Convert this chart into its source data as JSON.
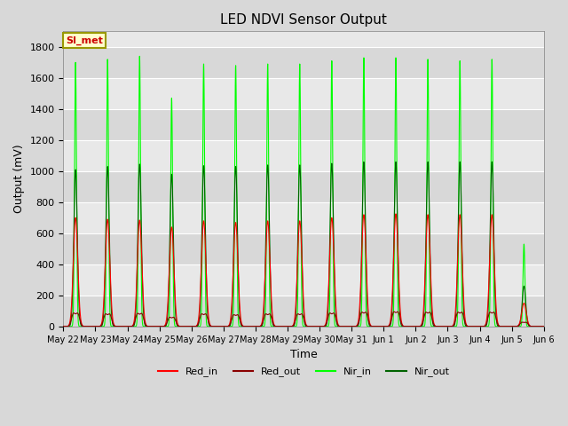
{
  "title": "LED NDVI Sensor Output",
  "xlabel": "Time",
  "ylabel": "Output (mV)",
  "ylim": [
    0,
    1900
  ],
  "yticks": [
    0,
    200,
    400,
    600,
    800,
    1000,
    1200,
    1400,
    1600,
    1800
  ],
  "x_tick_labels": [
    "May 22",
    "May 23",
    "May 24",
    "May 25",
    "May 26",
    "May 27",
    "May 28",
    "May 29",
    "May 30",
    "May 31",
    "Jun 1",
    "Jun 2",
    "Jun 3",
    "Jun 4",
    "Jun 5",
    "Jun 6"
  ],
  "annotation_text": "SI_met",
  "annotation_bg": "#ffffcc",
  "annotation_border": "#999900",
  "annotation_text_color": "#cc0000",
  "background_color": "#d8d8d8",
  "plot_bg_color": "#e8e8e8",
  "grid_color": "#ffffff",
  "stripe_color": "#d8d8d8",
  "colors": {
    "Red_in": "#ff0000",
    "Red_out": "#8b0000",
    "Nir_in": "#00ff00",
    "Nir_out": "#006400"
  },
  "num_cycles": 15,
  "red_in_peaks": [
    700,
    690,
    685,
    640,
    680,
    670,
    680,
    680,
    700,
    720,
    725,
    720,
    720,
    720,
    150
  ],
  "red_out_peaks": [
    80,
    75,
    78,
    55,
    75,
    70,
    75,
    75,
    80,
    85,
    88,
    85,
    85,
    85,
    25
  ],
  "nir_in_peaks": [
    1700,
    1720,
    1740,
    1470,
    1690,
    1680,
    1690,
    1690,
    1710,
    1730,
    1730,
    1720,
    1710,
    1720,
    530
  ],
  "nir_out_peaks": [
    1010,
    1030,
    1045,
    980,
    1035,
    1030,
    1040,
    1040,
    1050,
    1060,
    1060,
    1060,
    1060,
    1060,
    260
  ]
}
